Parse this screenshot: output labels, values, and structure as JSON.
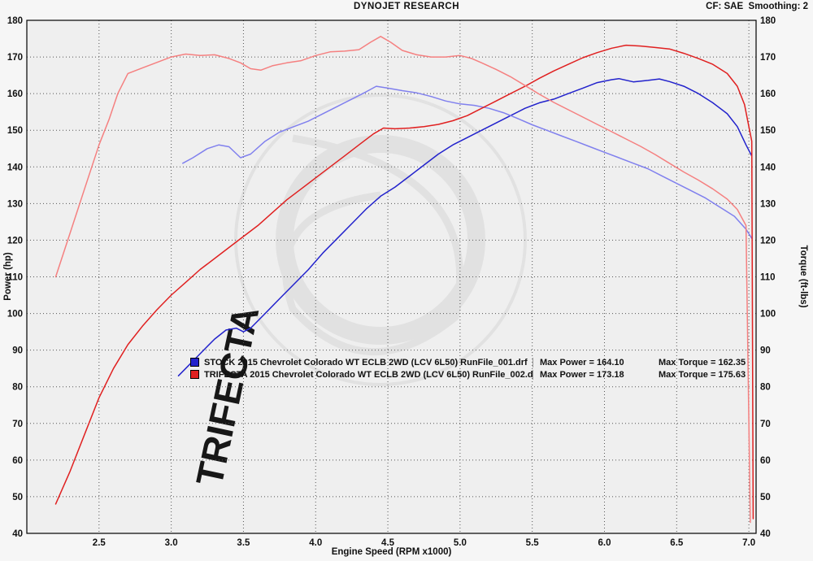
{
  "header": {
    "title": "DYNOJET RESEARCH",
    "correction": "CF: SAE  Smoothing: 2"
  },
  "watermark": {
    "text": "TRIFECTA"
  },
  "chart_data": {
    "type": "line",
    "title": "DYNOJET RESEARCH",
    "xlabel": "Engine Speed (RPM x1000)",
    "ylabel_left": "Power (hp)",
    "ylabel_right": "Torque (ft-lbs)",
    "xlim": [
      2.0,
      7.05
    ],
    "ylim": [
      40,
      180
    ],
    "x_ticks": [
      2.5,
      3.0,
      3.5,
      4.0,
      4.5,
      5.0,
      5.5,
      6.0,
      6.5,
      7.0
    ],
    "y_ticks": [
      40,
      50,
      60,
      70,
      80,
      90,
      100,
      110,
      120,
      130,
      140,
      150,
      160,
      170,
      180
    ],
    "grid": true,
    "legend_position": "inside-center-left",
    "series": [
      {
        "name": "STOCK power (hp)",
        "axis": "left",
        "color": "#2222cc",
        "points": [
          [
            3.05,
            83
          ],
          [
            3.1,
            85
          ],
          [
            3.2,
            89
          ],
          [
            3.3,
            93
          ],
          [
            3.38,
            95.5
          ],
          [
            3.45,
            96
          ],
          [
            3.5,
            95
          ],
          [
            3.55,
            96
          ],
          [
            3.65,
            100
          ],
          [
            3.75,
            104
          ],
          [
            3.85,
            108
          ],
          [
            3.95,
            112
          ],
          [
            4.05,
            116.5
          ],
          [
            4.15,
            120.5
          ],
          [
            4.25,
            124.5
          ],
          [
            4.35,
            128.5
          ],
          [
            4.45,
            132
          ],
          [
            4.55,
            134.5
          ],
          [
            4.65,
            137.5
          ],
          [
            4.75,
            140.5
          ],
          [
            4.85,
            143.5
          ],
          [
            4.95,
            146
          ],
          [
            5.05,
            148
          ],
          [
            5.15,
            150
          ],
          [
            5.25,
            152
          ],
          [
            5.35,
            154
          ],
          [
            5.45,
            156
          ],
          [
            5.55,
            157.5
          ],
          [
            5.65,
            158.5
          ],
          [
            5.75,
            160
          ],
          [
            5.85,
            161.5
          ],
          [
            5.95,
            163
          ],
          [
            6.05,
            163.8
          ],
          [
            6.1,
            164.1
          ],
          [
            6.2,
            163.2
          ],
          [
            6.3,
            163.6
          ],
          [
            6.38,
            164
          ],
          [
            6.45,
            163.3
          ],
          [
            6.55,
            162
          ],
          [
            6.65,
            160
          ],
          [
            6.75,
            157.5
          ],
          [
            6.85,
            154.5
          ],
          [
            6.92,
            151
          ],
          [
            6.98,
            146
          ],
          [
            7.02,
            143
          ]
        ]
      },
      {
        "name": "STOCK torque (ft-lbs)",
        "axis": "right",
        "color": "#8080ee",
        "points": [
          [
            3.08,
            141
          ],
          [
            3.15,
            142.5
          ],
          [
            3.25,
            145
          ],
          [
            3.33,
            146
          ],
          [
            3.4,
            145.5
          ],
          [
            3.48,
            142.5
          ],
          [
            3.55,
            143.5
          ],
          [
            3.65,
            147
          ],
          [
            3.75,
            149.5
          ],
          [
            3.85,
            151
          ],
          [
            3.95,
            152.5
          ],
          [
            4.05,
            154.5
          ],
          [
            4.15,
            156.5
          ],
          [
            4.25,
            158.5
          ],
          [
            4.35,
            160.5
          ],
          [
            4.42,
            162
          ],
          [
            4.5,
            161.5
          ],
          [
            4.6,
            160.8
          ],
          [
            4.7,
            160.2
          ],
          [
            4.8,
            159.2
          ],
          [
            4.9,
            158
          ],
          [
            5.0,
            157.2
          ],
          [
            5.1,
            156.8
          ],
          [
            5.2,
            156
          ],
          [
            5.3,
            154.8
          ],
          [
            5.4,
            153.2
          ],
          [
            5.5,
            151.5
          ],
          [
            5.6,
            150
          ],
          [
            5.7,
            148.5
          ],
          [
            5.8,
            147
          ],
          [
            5.9,
            145.5
          ],
          [
            6.0,
            144
          ],
          [
            6.1,
            142.5
          ],
          [
            6.2,
            141
          ],
          [
            6.3,
            139.5
          ],
          [
            6.4,
            137.5
          ],
          [
            6.5,
            135.5
          ],
          [
            6.6,
            133.5
          ],
          [
            6.7,
            131.5
          ],
          [
            6.8,
            129
          ],
          [
            6.9,
            126.5
          ],
          [
            6.98,
            123
          ],
          [
            7.02,
            120.5
          ]
        ]
      },
      {
        "name": "TRIFECTA power (hp)",
        "axis": "left",
        "color": "#e02020",
        "points": [
          [
            2.2,
            48
          ],
          [
            2.3,
            57
          ],
          [
            2.4,
            67
          ],
          [
            2.5,
            77
          ],
          [
            2.6,
            85
          ],
          [
            2.7,
            91.5
          ],
          [
            2.8,
            96.5
          ],
          [
            2.9,
            101
          ],
          [
            3.0,
            105
          ],
          [
            3.1,
            108.5
          ],
          [
            3.2,
            112
          ],
          [
            3.3,
            115
          ],
          [
            3.4,
            118
          ],
          [
            3.5,
            121
          ],
          [
            3.6,
            124
          ],
          [
            3.7,
            127.5
          ],
          [
            3.8,
            131
          ],
          [
            3.9,
            134
          ],
          [
            4.0,
            137
          ],
          [
            4.1,
            140
          ],
          [
            4.2,
            143
          ],
          [
            4.3,
            146
          ],
          [
            4.4,
            149
          ],
          [
            4.47,
            150.6
          ],
          [
            4.55,
            150.4
          ],
          [
            4.65,
            150.6
          ],
          [
            4.75,
            151
          ],
          [
            4.85,
            151.6
          ],
          [
            4.95,
            152.6
          ],
          [
            5.05,
            154
          ],
          [
            5.15,
            156
          ],
          [
            5.25,
            158
          ],
          [
            5.35,
            160
          ],
          [
            5.45,
            162
          ],
          [
            5.55,
            164.2
          ],
          [
            5.65,
            166.2
          ],
          [
            5.75,
            168
          ],
          [
            5.85,
            169.8
          ],
          [
            5.95,
            171.2
          ],
          [
            6.05,
            172.4
          ],
          [
            6.15,
            173.2
          ],
          [
            6.25,
            173
          ],
          [
            6.35,
            172.6
          ],
          [
            6.45,
            172.2
          ],
          [
            6.55,
            171
          ],
          [
            6.65,
            169.6
          ],
          [
            6.75,
            168
          ],
          [
            6.85,
            165.5
          ],
          [
            6.92,
            162
          ],
          [
            6.97,
            157
          ],
          [
            7.0,
            151
          ],
          [
            7.02,
            147
          ],
          [
            7.03,
            44
          ]
        ]
      },
      {
        "name": "TRIFECTA torque (ft-lbs)",
        "axis": "right",
        "color": "#f58080",
        "points": [
          [
            2.2,
            110
          ],
          [
            2.3,
            122
          ],
          [
            2.4,
            134
          ],
          [
            2.5,
            146
          ],
          [
            2.57,
            153
          ],
          [
            2.63,
            160
          ],
          [
            2.7,
            165.5
          ],
          [
            2.8,
            167
          ],
          [
            2.9,
            168.5
          ],
          [
            3.0,
            170
          ],
          [
            3.1,
            170.8
          ],
          [
            3.2,
            170.4
          ],
          [
            3.3,
            170.6
          ],
          [
            3.4,
            169.6
          ],
          [
            3.48,
            168.4
          ],
          [
            3.55,
            166.8
          ],
          [
            3.62,
            166.4
          ],
          [
            3.7,
            167.6
          ],
          [
            3.8,
            168.4
          ],
          [
            3.9,
            169
          ],
          [
            4.0,
            170.4
          ],
          [
            4.1,
            171.4
          ],
          [
            4.2,
            171.6
          ],
          [
            4.3,
            172
          ],
          [
            4.38,
            174
          ],
          [
            4.45,
            175.6
          ],
          [
            4.52,
            174
          ],
          [
            4.6,
            171.8
          ],
          [
            4.7,
            170.6
          ],
          [
            4.8,
            170
          ],
          [
            4.9,
            170
          ],
          [
            5.0,
            170.4
          ],
          [
            5.08,
            169.6
          ],
          [
            5.15,
            168.4
          ],
          [
            5.25,
            166.6
          ],
          [
            5.35,
            164.6
          ],
          [
            5.45,
            162.2
          ],
          [
            5.55,
            159.8
          ],
          [
            5.65,
            157.6
          ],
          [
            5.75,
            155.6
          ],
          [
            5.85,
            153.6
          ],
          [
            5.95,
            151.6
          ],
          [
            6.05,
            149.6
          ],
          [
            6.15,
            147.6
          ],
          [
            6.25,
            145.6
          ],
          [
            6.35,
            143.4
          ],
          [
            6.45,
            141
          ],
          [
            6.55,
            138.6
          ],
          [
            6.65,
            136.4
          ],
          [
            6.75,
            134
          ],
          [
            6.85,
            131.2
          ],
          [
            6.92,
            128.4
          ],
          [
            6.98,
            124
          ],
          [
            7.01,
            43
          ]
        ]
      }
    ],
    "legend": [
      {
        "color": "#2222cc",
        "vehicle": "STOCK 2015 Chevrolet Colorado WT ECLB 2WD (LCV 6L50) RunFile_001.drf",
        "max_power": "Max Power = 164.10",
        "max_torque": "Max Torque = 162.35"
      },
      {
        "color": "#e02020",
        "vehicle": "TRIFECTA 2015 Chevrolet Colorado WT ECLB 2WD (LCV 6L50) RunFile_002.drf",
        "max_power": "Max Power = 173.18",
        "max_torque": "Max Torque = 175.63"
      }
    ],
    "max_values": {
      "stock_max_power": 164.1,
      "stock_max_torque": 162.35,
      "trifecta_max_power": 173.18,
      "trifecta_max_torque": 175.63
    }
  }
}
